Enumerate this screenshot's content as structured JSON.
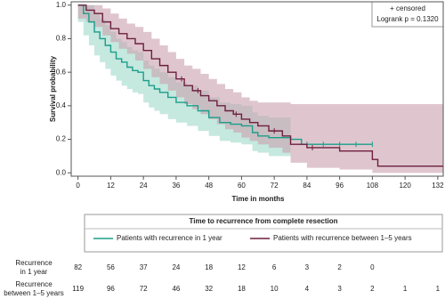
{
  "chart_data": {
    "type": "survival",
    "xlabel": "Time in months",
    "ylabel": "Survival probability",
    "annotations": [
      "+ censored",
      "Logrank p = 0.1320"
    ],
    "xlim": [
      -2.5,
      134
    ],
    "ylim": [
      -0.02,
      1.02
    ],
    "xticks": [
      0,
      12,
      24,
      36,
      48,
      60,
      72,
      84,
      96,
      108,
      120,
      132
    ],
    "yticks": [
      {
        "value": 0,
        "label": "0.0"
      },
      0.2,
      0.4,
      0.6,
      0.8,
      {
        "value": 1,
        "label": "1.0"
      }
    ],
    "legend_title": "Time to recurrence from complete resection",
    "series": [
      {
        "name": "Patients with recurrence in 1 year",
        "color": "#1b9e8a",
        "band_color": "#9fd9c9",
        "x": [
          0,
          2,
          4,
          6,
          8,
          10,
          12,
          14,
          16,
          18,
          20,
          22,
          24,
          26,
          28,
          30,
          33,
          36,
          40,
          44,
          48,
          52,
          56,
          60,
          64,
          66,
          70,
          78,
          82,
          108
        ],
        "values": [
          1,
          0.95,
          0.9,
          0.84,
          0.8,
          0.76,
          0.72,
          0.68,
          0.66,
          0.63,
          0.61,
          0.6,
          0.55,
          0.52,
          0.5,
          0.48,
          0.45,
          0.42,
          0.4,
          0.37,
          0.33,
          0.3,
          0.29,
          0.28,
          0.24,
          0.22,
          0.21,
          0.2,
          0.17,
          0.17
        ],
        "upper": [
          1,
          1,
          1,
          0.95,
          0.92,
          0.88,
          0.84,
          0.8,
          0.78,
          0.75,
          0.73,
          0.72,
          0.67,
          0.64,
          0.62,
          0.6,
          0.57,
          0.54,
          0.52,
          0.49,
          0.45,
          0.42,
          0.41,
          0.4,
          0.36,
          0.34,
          0.33,
          0.32,
          null,
          null
        ],
        "lower": [
          0.9,
          0.82,
          0.76,
          0.7,
          0.66,
          0.62,
          0.58,
          0.55,
          0.52,
          0.5,
          0.48,
          0.47,
          0.42,
          0.39,
          0.37,
          0.35,
          0.32,
          0.3,
          0.28,
          0.25,
          0.22,
          0.19,
          0.18,
          0.17,
          0.13,
          0.12,
          0.1,
          0.1,
          null,
          null
        ],
        "censored": [
          84,
          90,
          96,
          102,
          108
        ]
      },
      {
        "name": "Patients with recurrence between 1–5 years",
        "color": "#6d1f3f",
        "band_color": "#c9a0ae",
        "x": [
          0,
          3,
          6,
          9,
          12,
          15,
          18,
          21,
          24,
          27,
          30,
          33,
          36,
          39,
          42,
          45,
          48,
          51,
          54,
          57,
          60,
          63,
          66,
          70,
          75,
          78,
          84,
          96,
          108,
          110,
          134
        ],
        "values": [
          1,
          0.97,
          0.95,
          0.9,
          0.86,
          0.83,
          0.8,
          0.77,
          0.73,
          0.68,
          0.64,
          0.6,
          0.56,
          0.52,
          0.49,
          0.46,
          0.43,
          0.4,
          0.37,
          0.35,
          0.32,
          0.3,
          0.28,
          0.25,
          0.22,
          0.17,
          0.15,
          0.13,
          0.08,
          0.04,
          0.04
        ],
        "upper": [
          1,
          1,
          1,
          0.98,
          0.95,
          0.92,
          0.89,
          0.87,
          0.84,
          0.8,
          0.76,
          0.72,
          0.68,
          0.64,
          0.62,
          0.59,
          0.56,
          0.53,
          0.5,
          0.48,
          0.45,
          0.43,
          0.42,
          0.42,
          0.42,
          0.41,
          0.41,
          0.41,
          0.41,
          0.41,
          0.41
        ],
        "lower": [
          0.92,
          0.9,
          0.87,
          0.82,
          0.78,
          0.74,
          0.71,
          0.67,
          0.62,
          0.57,
          0.53,
          0.49,
          0.45,
          0.41,
          0.38,
          0.35,
          0.32,
          0.29,
          0.26,
          0.24,
          0.21,
          0.19,
          0.17,
          0.15,
          0.12,
          0.06,
          0.03,
          0.02,
          0,
          0,
          0
        ],
        "censored": [
          38,
          44,
          58,
          72,
          86
        ]
      }
    ],
    "risk_table": [
      {
        "label": [
          "Recurrence",
          "in 1 year"
        ],
        "values": [
          82,
          56,
          37,
          24,
          18,
          12,
          6,
          3,
          2,
          0
        ]
      },
      {
        "label": [
          "Recurrence",
          "between 1–5 years"
        ],
        "values": [
          119,
          96,
          72,
          46,
          32,
          18,
          10,
          4,
          3,
          2,
          1,
          1
        ]
      }
    ]
  }
}
